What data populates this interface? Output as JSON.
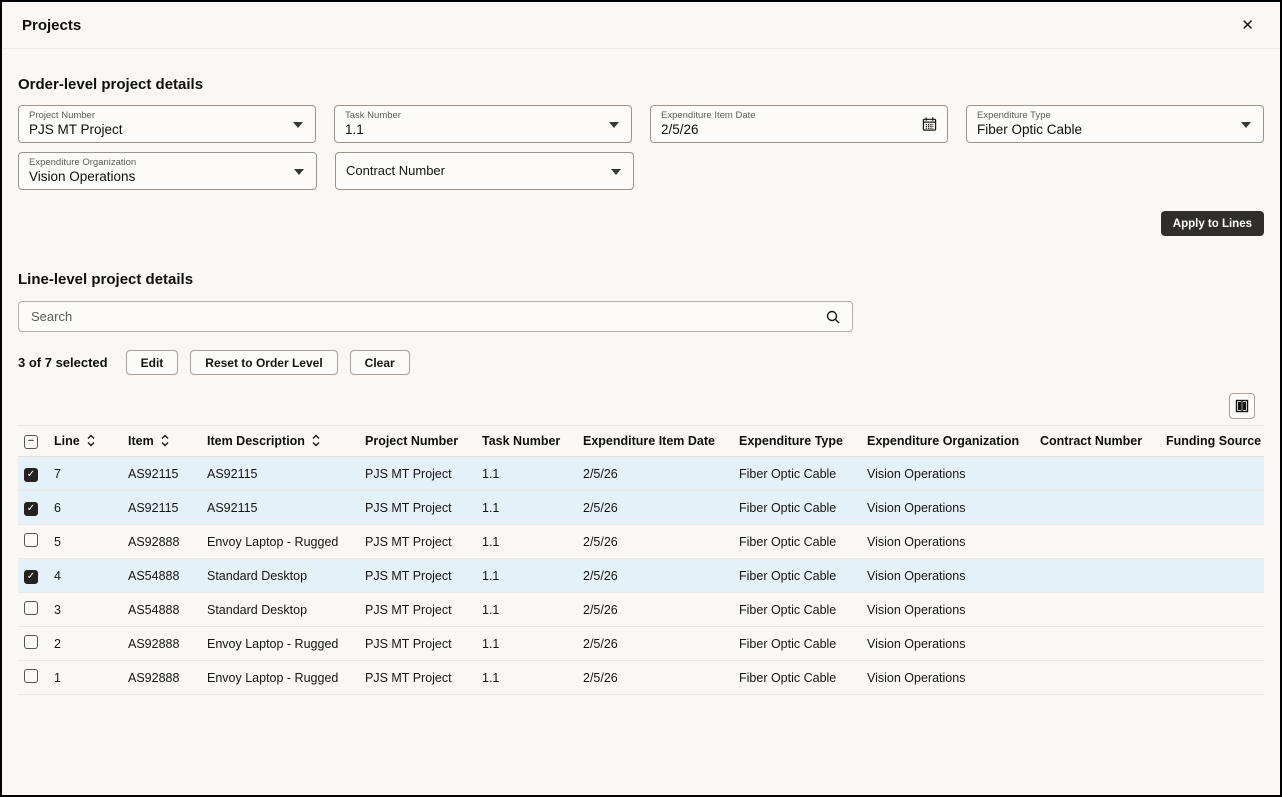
{
  "window": {
    "title": "Projects"
  },
  "icons": {
    "close": "✕",
    "check": "✓",
    "indeterminate": "−"
  },
  "order_section": {
    "heading": "Order-level project details",
    "fields": [
      {
        "label": "Project Number",
        "value": "PJS MT Project",
        "type": "dropdown"
      },
      {
        "label": "Task Number",
        "value": "1.1",
        "type": "dropdown"
      },
      {
        "label": "Expenditure Item Date",
        "value": "2/5/26",
        "type": "date"
      },
      {
        "label": "Expenditure Type",
        "value": "Fiber Optic Cable",
        "type": "dropdown"
      },
      {
        "label": "Expenditure Organization",
        "value": "Vision Operations",
        "type": "dropdown"
      },
      {
        "label": "Contract Number",
        "value": "",
        "type": "dropdown"
      }
    ],
    "apply_button_label": "Apply to Lines"
  },
  "line_section": {
    "heading": "Line-level project details",
    "search_placeholder": "Search",
    "search_value": "",
    "selection_status": "3 of 7 selected",
    "actions": [
      "Edit",
      "Reset to Order Level",
      "Clear"
    ]
  },
  "table": {
    "columns": [
      "Line",
      "Item",
      "Item Description",
      "Project Number",
      "Task Number",
      "Expenditure Item Date",
      "Expenditure Type",
      "Expenditure Organization",
      "Contract Number",
      "Funding Source"
    ],
    "sortable_columns": [
      "Line",
      "Item",
      "Item Description"
    ],
    "header_checkbox_state": "indeterminate",
    "rows": [
      {
        "selected": true,
        "cells": [
          "7",
          "AS92115",
          "AS92115",
          "PJS MT Project",
          "1.1",
          "2/5/26",
          "Fiber Optic Cable",
          "Vision Operations",
          "",
          ""
        ]
      },
      {
        "selected": true,
        "cells": [
          "6",
          "AS92115",
          "AS92115",
          "PJS MT Project",
          "1.1",
          "2/5/26",
          "Fiber Optic Cable",
          "Vision Operations",
          "",
          ""
        ]
      },
      {
        "selected": false,
        "cells": [
          "5",
          "AS92888",
          "Envoy Laptop - Rugged",
          "PJS MT Project",
          "1.1",
          "2/5/26",
          "Fiber Optic Cable",
          "Vision Operations",
          "",
          ""
        ]
      },
      {
        "selected": true,
        "cells": [
          "4",
          "AS54888",
          "Standard Desktop",
          "PJS MT Project",
          "1.1",
          "2/5/26",
          "Fiber Optic Cable",
          "Vision Operations",
          "",
          ""
        ]
      },
      {
        "selected": false,
        "cells": [
          "3",
          "AS54888",
          "Standard Desktop",
          "PJS MT Project",
          "1.1",
          "2/5/26",
          "Fiber Optic Cable",
          "Vision Operations",
          "",
          ""
        ]
      },
      {
        "selected": false,
        "cells": [
          "2",
          "AS92888",
          "Envoy Laptop - Rugged",
          "PJS MT Project",
          "1.1",
          "2/5/26",
          "Fiber Optic Cable",
          "Vision Operations",
          "",
          ""
        ]
      },
      {
        "selected": false,
        "cells": [
          "1",
          "AS92888",
          "Envoy Laptop - Rugged",
          "PJS MT Project",
          "1.1",
          "2/5/26",
          "Fiber Optic Cable",
          "Vision Operations",
          "",
          ""
        ]
      }
    ]
  },
  "colors": {
    "background": "#FBF7F5",
    "primary_button": "#312D2A",
    "selected_row": "#E4F1F9",
    "field_border": "#9B948E",
    "text": "#161513"
  }
}
